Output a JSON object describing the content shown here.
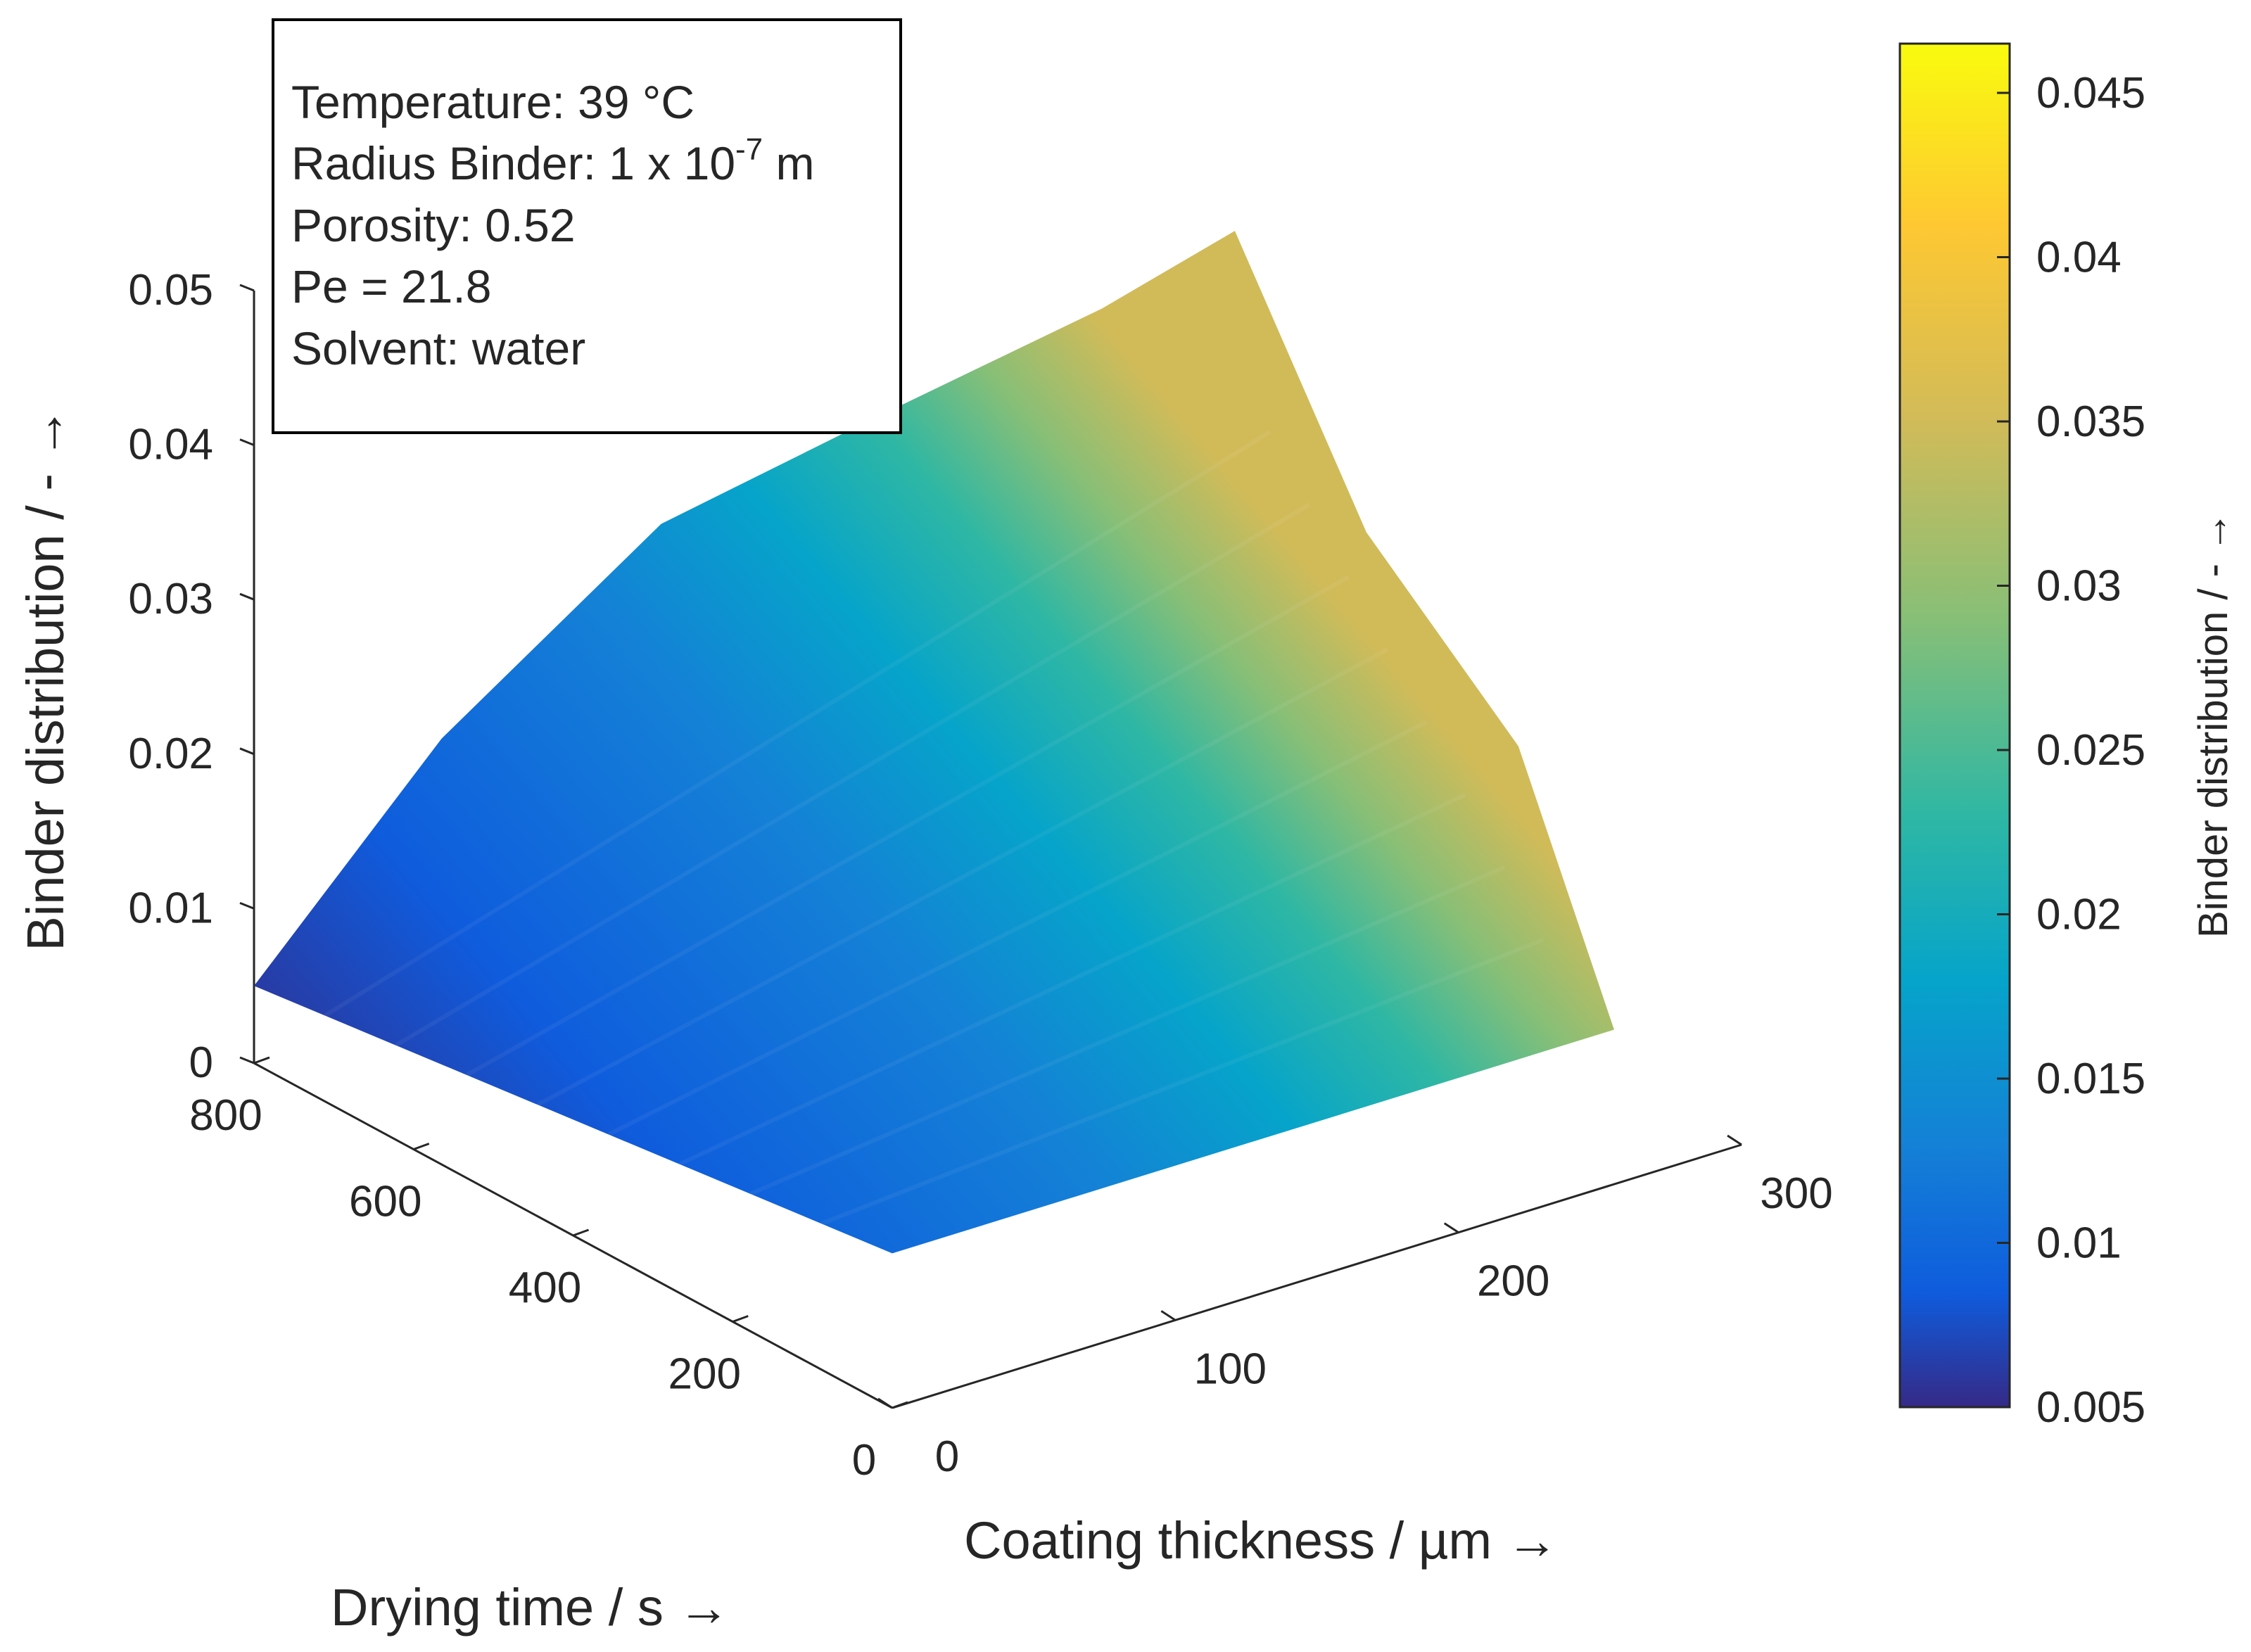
{
  "chart_data": {
    "type": "surface3d",
    "title": "",
    "xlabel": "Coating thickness / µm →",
    "ylabel": "Drying time / s →",
    "zlabel": "Binder distribution / - →",
    "colorbar_label": "Binder distribution / - →",
    "colormap": "parula",
    "xlim": [
      0,
      300
    ],
    "ylim": [
      0,
      800
    ],
    "zlim": [
      0,
      0.05
    ],
    "clim": [
      0.005,
      0.0465
    ],
    "x_ticks": [
      0,
      100,
      200,
      300
    ],
    "x_tick_labels": [
      "0",
      "100",
      "200",
      "300"
    ],
    "y_ticks": [
      0,
      200,
      400,
      600,
      800
    ],
    "y_tick_labels": [
      "0",
      "200",
      "400",
      "600",
      "800"
    ],
    "z_ticks": [
      0,
      0.01,
      0.02,
      0.03,
      0.04,
      0.05
    ],
    "z_tick_labels": [
      "0",
      "0.01",
      "0.02",
      "0.03",
      "0.04",
      "0.05"
    ],
    "colorbar_ticks": [
      0.005,
      0.01,
      0.015,
      0.02,
      0.025,
      0.03,
      0.035,
      0.04,
      0.045
    ],
    "colorbar_tick_labels": [
      "0.005",
      "0.01",
      "0.015",
      "0.02",
      "0.025",
      "0.03",
      "0.035",
      "0.04",
      "0.045"
    ],
    "surface_outline": [
      {
        "x": 0,
        "y": 0,
        "z": 0.01
      },
      {
        "x": 255,
        "y": 0,
        "z": 0.01
      },
      {
        "x": 255,
        "y": 120,
        "z": 0.025
      },
      {
        "x": 252,
        "y": 300,
        "z": 0.034
      },
      {
        "x": 245,
        "y": 440,
        "z": 0.05
      },
      {
        "x": 215,
        "y": 500,
        "z": 0.045
      },
      {
        "x": 160,
        "y": 600,
        "z": 0.038
      },
      {
        "x": 110,
        "y": 680,
        "z": 0.032
      },
      {
        "x": 55,
        "y": 760,
        "z": 0.019
      },
      {
        "x": 0,
        "y": 800,
        "z": 0.005
      }
    ],
    "colorbar_stops": [
      {
        "value": 0.005,
        "color": "#352A87"
      },
      {
        "value": 0.0085,
        "color": "#0F5CDD"
      },
      {
        "value": 0.013,
        "color": "#1481D6"
      },
      {
        "value": 0.018,
        "color": "#06A4CA"
      },
      {
        "value": 0.023,
        "color": "#2EB7A4"
      },
      {
        "value": 0.029,
        "color": "#87BF77"
      },
      {
        "value": 0.035,
        "color": "#D1BB59"
      },
      {
        "value": 0.041,
        "color": "#FEC832"
      },
      {
        "value": 0.0465,
        "color": "#F9FB0E"
      }
    ]
  },
  "annotation": {
    "lines": [
      "Temperature: 39 °C",
      "Radius Binder: 1 x 10",
      "Porosity: 0.52",
      "Pe = 21.8",
      "Solvent: water"
    ],
    "radius_exponent": "-7",
    "radius_unit": " m"
  }
}
